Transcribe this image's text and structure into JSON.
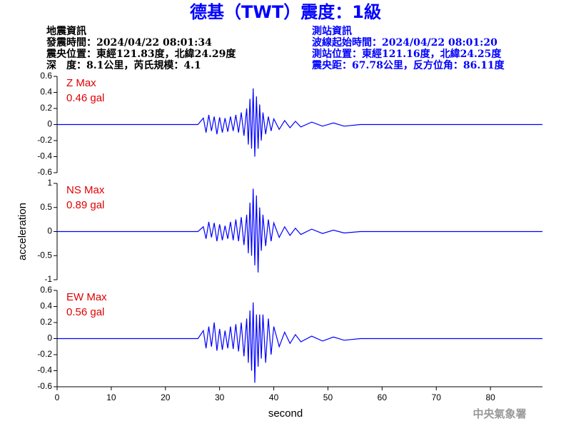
{
  "header": {
    "title": "德基（TWT）震度：1級",
    "left": [
      "地震資訊",
      "發震時間：2024/04/22 08:01:34",
      "震央位置：東經121.83度，北緯24.29度",
      "深　度：8.1公里，芮氏規模：4.1"
    ],
    "right": [
      "測站資訊",
      "波線起始時間：2024/04/22 08:01:20",
      "測站位置：東經121.16度，北緯24.25度",
      "震央距：67.78公里，反方位角：86.11度"
    ]
  },
  "chart_data": [
    {
      "type": "line",
      "label": "Z Max",
      "max_label": "0.46 gal",
      "color": "#0000ff",
      "x": [
        0,
        26,
        27,
        27.5,
        28,
        28.5,
        29,
        29.5,
        30,
        30.5,
        31,
        31.5,
        32,
        32.5,
        33,
        33.5,
        34,
        34.5,
        35,
        35.3,
        35.6,
        35.9,
        36.2,
        36.5,
        36.8,
        37.1,
        37.4,
        37.7,
        38,
        38.5,
        39,
        39.5,
        40,
        41,
        42,
        43,
        44,
        45,
        47,
        49,
        51,
        53,
        56,
        89.6
      ],
      "values": [
        0,
        0,
        0.08,
        -0.1,
        0.12,
        -0.08,
        0.1,
        -0.12,
        0.09,
        -0.1,
        0.08,
        -0.09,
        0.1,
        -0.08,
        0.12,
        -0.1,
        0.15,
        -0.14,
        0.2,
        -0.25,
        0.32,
        -0.3,
        0.45,
        -0.4,
        0.35,
        -0.3,
        0.25,
        -0.2,
        0.15,
        -0.12,
        0.1,
        -0.08,
        0.07,
        -0.06,
        0.05,
        -0.04,
        0.04,
        -0.03,
        0.03,
        -0.02,
        0.02,
        -0.02,
        0,
        0
      ],
      "xlim": [
        0,
        89.6
      ],
      "ylim": [
        -0.6,
        0.6
      ],
      "yticks": [
        0.6,
        0.4,
        0.2,
        0,
        -0.2,
        -0.4,
        -0.6
      ]
    },
    {
      "type": "line",
      "label": "NS Max",
      "max_label": "0.89 gal",
      "color": "#0000ff",
      "ylabel": "acceleration",
      "x": [
        0,
        26,
        27,
        27.5,
        28,
        28.5,
        29,
        29.5,
        30,
        30.5,
        31,
        31.5,
        32,
        32.5,
        33,
        33.5,
        34,
        34.5,
        35,
        35.3,
        35.6,
        35.9,
        36.2,
        36.5,
        36.8,
        37.1,
        37.4,
        37.7,
        38,
        38.5,
        39,
        39.5,
        40,
        41,
        42,
        43,
        44,
        45,
        47,
        49,
        51,
        53,
        56,
        89.6
      ],
      "values": [
        0,
        0,
        0.1,
        -0.15,
        0.2,
        -0.12,
        0.18,
        -0.2,
        0.15,
        -0.18,
        0.12,
        -0.15,
        0.2,
        -0.18,
        0.25,
        -0.2,
        0.3,
        -0.28,
        0.35,
        -0.45,
        0.6,
        -0.5,
        0.89,
        -0.7,
        0.75,
        -0.85,
        0.5,
        -0.4,
        0.35,
        -0.3,
        0.25,
        -0.2,
        0.18,
        -0.12,
        0.1,
        -0.08,
        0.07,
        -0.06,
        0.05,
        -0.04,
        0.03,
        -0.03,
        0,
        0
      ],
      "xlim": [
        0,
        89.6
      ],
      "ylim": [
        -1,
        1
      ],
      "yticks": [
        1,
        0.5,
        0,
        -0.5,
        -1
      ]
    },
    {
      "type": "line",
      "label": "EW Max",
      "max_label": "0.56 gal",
      "color": "#0000ff",
      "xlabel": "second",
      "x": [
        0,
        26,
        27,
        27.5,
        28,
        28.5,
        29,
        29.5,
        30,
        30.5,
        31,
        31.5,
        32,
        32.5,
        33,
        33.5,
        34,
        34.5,
        35,
        35.3,
        35.6,
        35.9,
        36.2,
        36.5,
        36.8,
        37.1,
        37.4,
        37.7,
        38,
        38.5,
        39,
        39.5,
        40,
        41,
        42,
        43,
        44,
        45,
        47,
        49,
        51,
        53,
        56,
        89.6
      ],
      "values": [
        0,
        0,
        0.1,
        -0.12,
        0.15,
        -0.1,
        0.2,
        -0.15,
        0.12,
        -0.14,
        0.1,
        -0.12,
        0.15,
        -0.13,
        0.18,
        -0.16,
        0.2,
        -0.22,
        0.25,
        -0.3,
        0.35,
        -0.4,
        0.45,
        -0.55,
        0.3,
        -0.35,
        0.3,
        -0.25,
        0.3,
        -0.3,
        0.25,
        -0.2,
        0.15,
        -0.1,
        0.08,
        -0.06,
        0.05,
        -0.04,
        0.03,
        -0.03,
        0.02,
        -0.02,
        0,
        0
      ],
      "xlim": [
        0,
        89.6
      ],
      "ylim": [
        -0.6,
        0.6
      ],
      "yticks": [
        0.6,
        0.4,
        0.2,
        0,
        -0.2,
        -0.4,
        -0.6
      ],
      "xticks": [
        0,
        10,
        20,
        30,
        40,
        50,
        60,
        70,
        80
      ]
    }
  ],
  "footer": "中央氣象署"
}
